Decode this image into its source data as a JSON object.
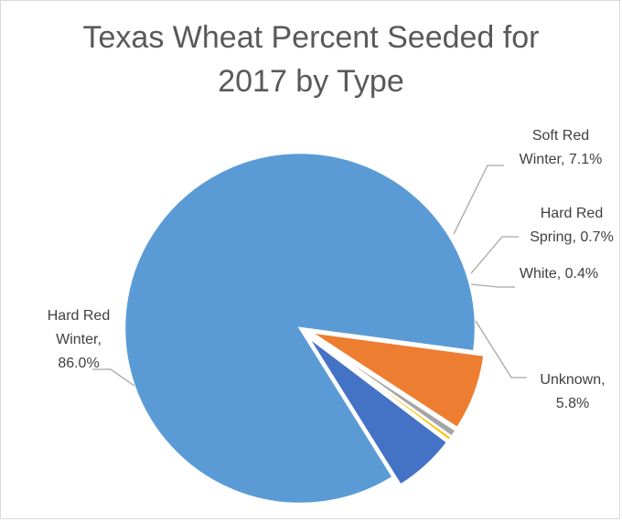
{
  "chart_data": {
    "type": "pie",
    "title_lines": [
      "Texas Wheat Percent Seeded for",
      "2017 by Type"
    ],
    "slices": [
      {
        "name": "Hard Red Winter",
        "value": 86.0,
        "label_lines": [
          "Hard Red",
          "Winter,",
          "86.0%"
        ],
        "color": "#5B9BD5"
      },
      {
        "name": "Soft Red Winter",
        "value": 7.1,
        "label_lines": [
          "Soft Red",
          "Winter, 7.1%"
        ],
        "color": "#ED7D31"
      },
      {
        "name": "Hard Red Spring",
        "value": 0.7,
        "label_lines": [
          "Hard Red",
          "Spring, 0.7%"
        ],
        "color": "#A5A5A5"
      },
      {
        "name": "White",
        "value": 0.4,
        "label_lines": [
          "White, 0.4%"
        ],
        "color": "#FFC000"
      },
      {
        "name": "Unknown",
        "value": 5.8,
        "label_lines": [
          "Unknown,",
          "5.8%"
        ],
        "color": "#4472C4"
      }
    ],
    "legend": "none"
  }
}
